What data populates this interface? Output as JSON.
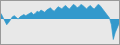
{
  "chart_data": {
    "type": "area",
    "values": [
      5,
      2,
      -2,
      -5,
      -3,
      0,
      2,
      3,
      1,
      0,
      2,
      3,
      4,
      3,
      4,
      5,
      6,
      4,
      5,
      7,
      6,
      8,
      7,
      6,
      8,
      9,
      10,
      8,
      7,
      9,
      11,
      10,
      9,
      11,
      12,
      10,
      9,
      11,
      13,
      12,
      10,
      11,
      13,
      12,
      10,
      9,
      11,
      12,
      10,
      9,
      11,
      13,
      12,
      10,
      8,
      6,
      4,
      1,
      -5,
      -18,
      -12,
      -7,
      -4
    ],
    "color": "#3399cc",
    "xlim": [
      0,
      62
    ],
    "ylim": [
      -22,
      16
    ],
    "grid": false,
    "tick_labels": false
  }
}
